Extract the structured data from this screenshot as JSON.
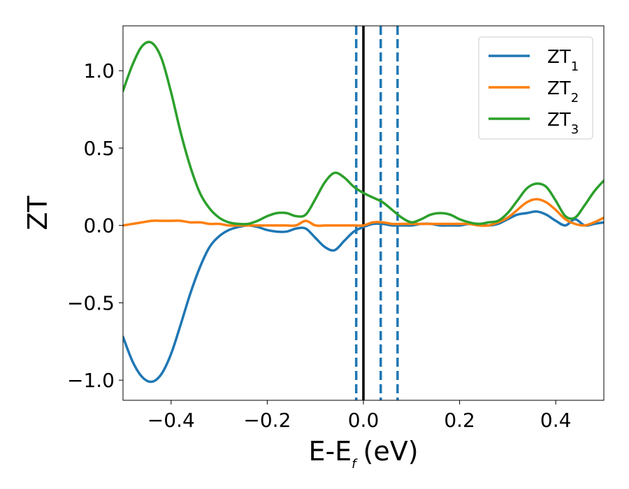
{
  "chart_data": {
    "type": "line",
    "xlabel": "E-E",
    "xlabel_subscript": "f",
    "xlabel_unit": "(eV)",
    "ylabel": "ZT",
    "xlim": [
      -0.5,
      0.5
    ],
    "ylim": [
      -1.13,
      1.29
    ],
    "grid": false,
    "legend_position": "top-right",
    "x_ticks": [
      -0.4,
      -0.2,
      0.0,
      0.2,
      0.4
    ],
    "x_tick_labels": [
      "−0.4",
      "−0.2",
      "0.0",
      "0.2",
      "0.4"
    ],
    "y_ticks": [
      -1.0,
      -0.5,
      0.0,
      0.5,
      1.0
    ],
    "y_tick_labels": [
      "−1.0",
      "−0.5",
      "0.0",
      "0.5",
      "1.0"
    ],
    "vertical_lines": [
      {
        "x": 0.0,
        "style": "solid",
        "color": "#000000"
      },
      {
        "x": -0.015,
        "style": "dashed",
        "color": "#1f77b4"
      },
      {
        "x": 0.036,
        "style": "dashed",
        "color": "#1f77b4"
      },
      {
        "x": 0.071,
        "style": "dashed",
        "color": "#1f77b4"
      }
    ],
    "series": [
      {
        "name": "ZT",
        "name_subscript": "1",
        "color": "#1f77b4",
        "x": [
          -0.5,
          -0.48,
          -0.46,
          -0.44,
          -0.42,
          -0.4,
          -0.38,
          -0.36,
          -0.34,
          -0.32,
          -0.3,
          -0.28,
          -0.26,
          -0.24,
          -0.22,
          -0.2,
          -0.18,
          -0.16,
          -0.14,
          -0.12,
          -0.1,
          -0.08,
          -0.06,
          -0.04,
          -0.02,
          0.0,
          0.02,
          0.04,
          0.06,
          0.08,
          0.1,
          0.12,
          0.14,
          0.16,
          0.18,
          0.2,
          0.22,
          0.24,
          0.26,
          0.28,
          0.3,
          0.32,
          0.34,
          0.36,
          0.38,
          0.4,
          0.42,
          0.44,
          0.46,
          0.48,
          0.5
        ],
        "y": [
          -0.72,
          -0.88,
          -0.98,
          -1.01,
          -0.96,
          -0.83,
          -0.64,
          -0.44,
          -0.27,
          -0.14,
          -0.07,
          -0.03,
          -0.01,
          0.0,
          -0.01,
          -0.03,
          -0.04,
          -0.04,
          -0.02,
          -0.02,
          -0.08,
          -0.14,
          -0.16,
          -0.1,
          -0.04,
          -0.01,
          0.01,
          0.01,
          0.0,
          0.0,
          0.0,
          0.01,
          0.01,
          0.0,
          0.0,
          0.0,
          0.01,
          0.01,
          0.0,
          0.01,
          0.04,
          0.07,
          0.08,
          0.09,
          0.07,
          0.03,
          0.0,
          0.04,
          0.0,
          0.01,
          0.02
        ]
      },
      {
        "name": "ZT",
        "name_subscript": "2",
        "color": "#ff7f0e",
        "x": [
          -0.5,
          -0.48,
          -0.46,
          -0.44,
          -0.42,
          -0.4,
          -0.38,
          -0.36,
          -0.34,
          -0.32,
          -0.3,
          -0.28,
          -0.26,
          -0.24,
          -0.22,
          -0.2,
          -0.18,
          -0.16,
          -0.14,
          -0.12,
          -0.1,
          -0.08,
          -0.06,
          -0.04,
          -0.02,
          0.0,
          0.02,
          0.04,
          0.06,
          0.08,
          0.1,
          0.12,
          0.14,
          0.16,
          0.18,
          0.2,
          0.22,
          0.24,
          0.26,
          0.28,
          0.3,
          0.32,
          0.34,
          0.36,
          0.38,
          0.4,
          0.42,
          0.44,
          0.46,
          0.48,
          0.5
        ],
        "y": [
          0.0,
          0.01,
          0.02,
          0.03,
          0.03,
          0.03,
          0.03,
          0.02,
          0.02,
          0.01,
          0.01,
          0.0,
          0.0,
          0.0,
          0.0,
          0.0,
          0.0,
          0.0,
          0.0,
          0.03,
          0.0,
          0.0,
          0.0,
          0.0,
          0.0,
          0.0,
          0.02,
          0.02,
          0.01,
          0.01,
          0.01,
          0.01,
          0.01,
          0.01,
          0.01,
          0.01,
          0.01,
          0.0,
          0.0,
          0.02,
          0.05,
          0.1,
          0.15,
          0.17,
          0.15,
          0.1,
          0.04,
          0.01,
          0.0,
          0.02,
          0.05
        ]
      },
      {
        "name": "ZT",
        "name_subscript": "3",
        "color": "#2ca02c",
        "x": [
          -0.5,
          -0.48,
          -0.46,
          -0.44,
          -0.42,
          -0.4,
          -0.38,
          -0.36,
          -0.34,
          -0.32,
          -0.3,
          -0.28,
          -0.26,
          -0.24,
          -0.22,
          -0.2,
          -0.18,
          -0.16,
          -0.14,
          -0.12,
          -0.1,
          -0.08,
          -0.06,
          -0.04,
          -0.02,
          0.0,
          0.02,
          0.04,
          0.06,
          0.08,
          0.1,
          0.12,
          0.14,
          0.16,
          0.18,
          0.2,
          0.22,
          0.24,
          0.26,
          0.28,
          0.3,
          0.32,
          0.34,
          0.36,
          0.38,
          0.4,
          0.42,
          0.44,
          0.46,
          0.48,
          0.5
        ],
        "y": [
          0.87,
          1.04,
          1.16,
          1.18,
          1.08,
          0.86,
          0.6,
          0.38,
          0.21,
          0.11,
          0.05,
          0.02,
          0.01,
          0.01,
          0.03,
          0.06,
          0.08,
          0.08,
          0.06,
          0.07,
          0.17,
          0.28,
          0.34,
          0.31,
          0.25,
          0.21,
          0.18,
          0.15,
          0.1,
          0.05,
          0.02,
          0.04,
          0.07,
          0.08,
          0.07,
          0.04,
          0.02,
          0.01,
          0.02,
          0.03,
          0.08,
          0.16,
          0.24,
          0.27,
          0.25,
          0.16,
          0.06,
          0.05,
          0.13,
          0.22,
          0.29
        ]
      }
    ]
  }
}
